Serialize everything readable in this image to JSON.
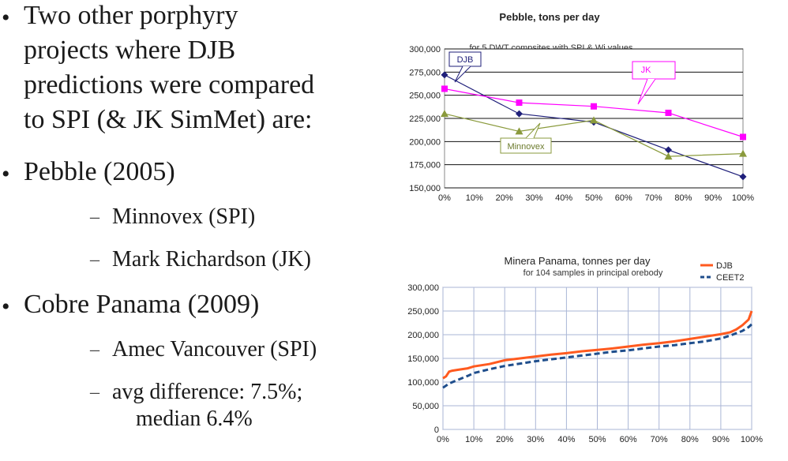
{
  "slide": {
    "bullets": [
      {
        "text_lines": [
          "Two other porphyry",
          "projects where DJB",
          "predictions were compared",
          "to SPI (& JK SimMet) are:"
        ],
        "sub": []
      },
      {
        "text_lines": [
          "Pebble (2005)"
        ],
        "sub": [
          {
            "text_lines": [
              "Minnovex (SPI)"
            ]
          },
          {
            "text_lines": [
              "Mark Richardson (JK)"
            ]
          }
        ]
      },
      {
        "text_lines": [
          "Cobre Panama (2009)"
        ],
        "sub": [
          {
            "text_lines": [
              "Amec Vancouver (SPI)"
            ]
          },
          {
            "text_lines": [
              "avg difference: 7.5%;",
              "median 6.4%"
            ]
          }
        ]
      }
    ],
    "bullet_char": "•",
    "dash_char": "–"
  },
  "chart_data": [
    {
      "type": "line",
      "title": "Pebble, tons per day",
      "subtitle": "for 5 DWT compsites with SPI & Wi values",
      "x": [
        0,
        25,
        50,
        75,
        100
      ],
      "xticks": [
        "0%",
        "10%",
        "20%",
        "30%",
        "40%",
        "50%",
        "60%",
        "70%",
        "80%",
        "90%",
        "100%"
      ],
      "yticks": [
        "150,000",
        "175,000",
        "200,000",
        "225,000",
        "250,000",
        "275,000",
        "300,000"
      ],
      "ylim": [
        150000,
        300000
      ],
      "xlim": [
        0,
        100
      ],
      "grid": "horizontal",
      "series": [
        {
          "name": "DJB",
          "color": "#1f1f7a",
          "marker": "diamond",
          "values": [
            272000,
            230000,
            221000,
            191000,
            162000
          ]
        },
        {
          "name": "JK",
          "color": "#ff00ff",
          "marker": "square",
          "values": [
            257000,
            242000,
            238000,
            231000,
            205000
          ]
        },
        {
          "name": "Minnovex",
          "color": "#8a9a3c",
          "marker": "triangle",
          "values": [
            230000,
            211000,
            223000,
            184000,
            187000
          ]
        }
      ],
      "annotations": [
        "DJB",
        "JK",
        "Minnovex"
      ]
    },
    {
      "type": "line",
      "title": "Minera Panama, tonnes per day",
      "subtitle": "for 104 samples in principal orebody",
      "xticks": [
        "0%",
        "10%",
        "20%",
        "30%",
        "40%",
        "50%",
        "60%",
        "70%",
        "80%",
        "90%",
        "100%"
      ],
      "yticks": [
        "0",
        "50,000",
        "100,000",
        "150,000",
        "200,000",
        "250,000",
        "300,000"
      ],
      "ylim": [
        0,
        300000
      ],
      "xlim": [
        0,
        100
      ],
      "grid": "both",
      "legend": "top-right",
      "series": [
        {
          "name": "DJB",
          "color": "#ff5a1f",
          "style": "solid",
          "points": [
            [
              0,
              108000
            ],
            [
              1,
              112000
            ],
            [
              2,
              122000
            ],
            [
              3,
              124000
            ],
            [
              5,
              126000
            ],
            [
              8,
              129000
            ],
            [
              10,
              133000
            ],
            [
              15,
              138000
            ],
            [
              20,
              146000
            ],
            [
              25,
              150000
            ],
            [
              30,
              154000
            ],
            [
              35,
              158000
            ],
            [
              40,
              161000
            ],
            [
              45,
              165000
            ],
            [
              50,
              168000
            ],
            [
              55,
              171000
            ],
            [
              60,
              175000
            ],
            [
              65,
              179000
            ],
            [
              70,
              182000
            ],
            [
              75,
              186000
            ],
            [
              80,
              191000
            ],
            [
              85,
              196000
            ],
            [
              90,
              201000
            ],
            [
              93,
              205000
            ],
            [
              95,
              211000
            ],
            [
              97,
              220000
            ],
            [
              99,
              232000
            ],
            [
              100,
              250000
            ]
          ]
        },
        {
          "name": "CEET2",
          "color": "#1f4e8c",
          "style": "dashed",
          "points": [
            [
              0,
              88000
            ],
            [
              2,
              97000
            ],
            [
              5,
              105000
            ],
            [
              8,
              113000
            ],
            [
              10,
              119000
            ],
            [
              15,
              127000
            ],
            [
              20,
              134000
            ],
            [
              25,
              139000
            ],
            [
              30,
              144000
            ],
            [
              35,
              148000
            ],
            [
              40,
              152000
            ],
            [
              45,
              156000
            ],
            [
              50,
              160000
            ],
            [
              55,
              164000
            ],
            [
              60,
              167000
            ],
            [
              65,
              171000
            ],
            [
              70,
              175000
            ],
            [
              75,
              178000
            ],
            [
              80,
              182000
            ],
            [
              85,
              186000
            ],
            [
              90,
              192000
            ],
            [
              93,
              198000
            ],
            [
              95,
              203000
            ],
            [
              97,
              208000
            ],
            [
              99,
              216000
            ],
            [
              100,
              222000
            ]
          ]
        }
      ]
    }
  ]
}
